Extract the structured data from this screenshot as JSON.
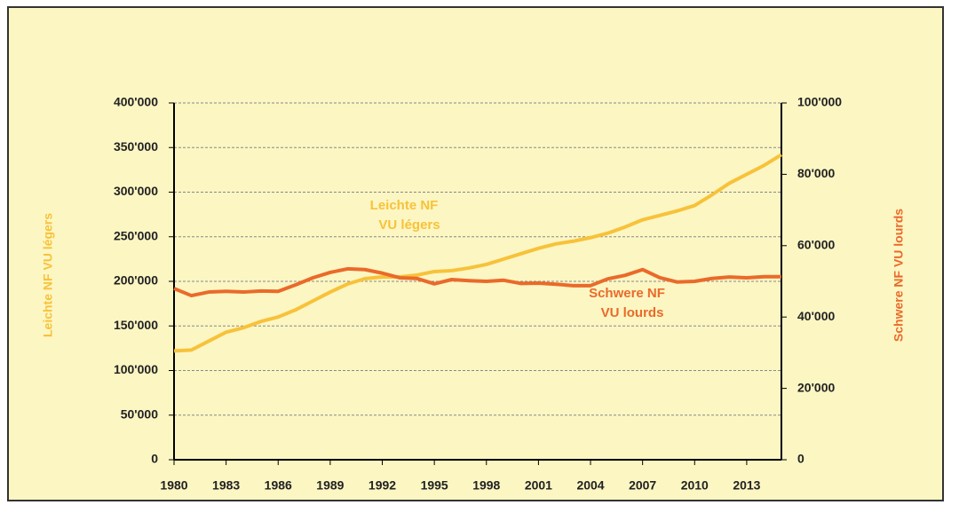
{
  "chart_data": {
    "type": "line",
    "x": [
      1980,
      1981,
      1982,
      1983,
      1984,
      1985,
      1986,
      1987,
      1988,
      1989,
      1990,
      1991,
      1992,
      1993,
      1994,
      1995,
      1996,
      1997,
      1998,
      1999,
      2000,
      2001,
      2002,
      2003,
      2004,
      2005,
      2006,
      2007,
      2008,
      2009,
      2010,
      2011,
      2012,
      2013,
      2014,
      2015
    ],
    "xlim": [
      1980,
      2015
    ],
    "xticks": [
      1980,
      1983,
      1986,
      1989,
      1992,
      1995,
      1998,
      2001,
      2004,
      2007,
      2010,
      2013
    ],
    "ylim": [
      0,
      400000
    ],
    "yticks": [
      0,
      {
        "value": 50000,
        "label": "50'000"
      },
      {
        "value": 100000,
        "label": "100'000"
      },
      {
        "value": 150000,
        "label": "150'000"
      },
      {
        "value": 200000,
        "label": "200'000"
      },
      {
        "value": 250000,
        "label": "250'000"
      },
      {
        "value": 300000,
        "label": "300'000"
      },
      {
        "value": 350000,
        "label": "350'000"
      },
      {
        "value": 400000,
        "label": "400'000"
      }
    ],
    "y2lim": [
      0,
      100000
    ],
    "y2ticks": [
      0,
      {
        "value": 20000,
        "label": "20'000"
      },
      {
        "value": 40000,
        "label": "40'000"
      },
      {
        "value": 60000,
        "label": "60'000"
      },
      {
        "value": 80000,
        "label": "80'000"
      },
      {
        "value": 100000,
        "label": "100'000"
      }
    ],
    "ylabel": "Leichte NF VU légers",
    "y2label": "Schwere NF VU lourds",
    "grid": true,
    "series": [
      {
        "color": "#f7c23a",
        "values": [
          122000,
          123000,
          133000,
          143000,
          148000,
          155000,
          160000,
          168000,
          178000,
          188000,
          197000,
          203000,
          205000,
          205000,
          207000,
          211000,
          212000,
          215000,
          219000,
          225000,
          231000,
          237000,
          242000,
          245000,
          249000,
          254000,
          261000,
          269000,
          274000,
          279000,
          285000,
          297000,
          310000,
          320000,
          330000,
          342000
        ]
      },
      {
        "color": "#ea6a2a",
        "axis": "y2",
        "values": [
          48000,
          46000,
          47000,
          47200,
          47000,
          47300,
          47200,
          49000,
          51000,
          52500,
          53500,
          53300,
          52300,
          51000,
          50800,
          49300,
          50500,
          50200,
          50000,
          50300,
          49400,
          49500,
          49200,
          48800,
          48800,
          50700,
          51700,
          53300,
          51000,
          49800,
          50000,
          50800,
          51200,
          51000,
          51300,
          51300
        ]
      }
    ],
    "annotations": [
      {
        "lines": [
          "Leichte NF",
          "VU légers"
        ],
        "color": "#f7c23a"
      },
      {
        "lines": [
          "Schwere NF",
          "VU lourds"
        ],
        "color": "#ea6a2a"
      }
    ]
  }
}
